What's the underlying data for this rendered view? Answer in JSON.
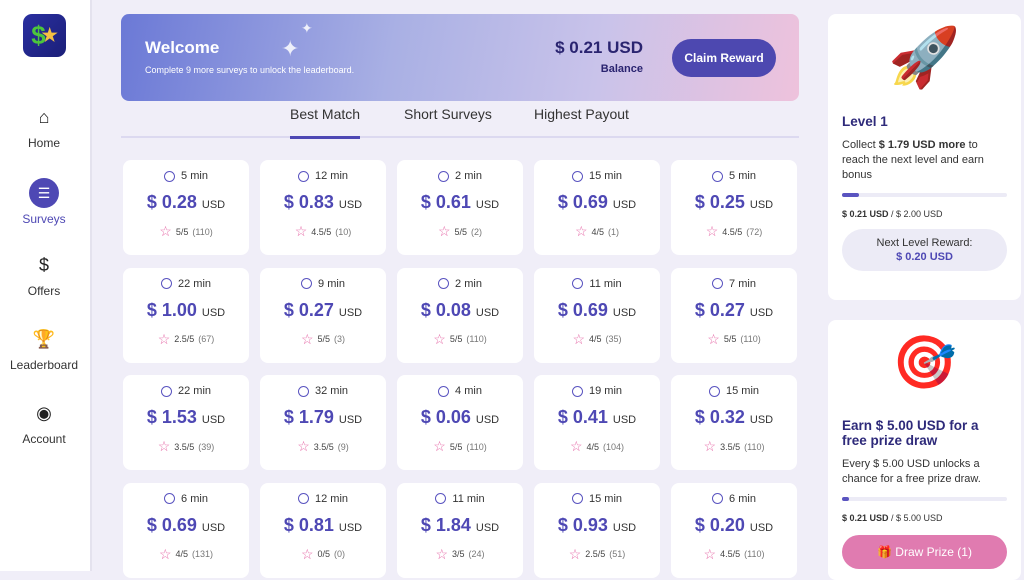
{
  "app": {
    "logo_text": "$★"
  },
  "sidebar": {
    "items": [
      {
        "label": "Home",
        "icon": "⌂",
        "name": "home"
      },
      {
        "label": "Surveys",
        "icon": "☰",
        "name": "surveys",
        "active": true
      },
      {
        "label": "Offers",
        "icon": "$",
        "name": "offers"
      },
      {
        "label": "Leaderboard",
        "icon": "🏆",
        "name": "leaderboard"
      },
      {
        "label": "Account",
        "icon": "◉",
        "name": "account"
      }
    ]
  },
  "banner": {
    "title": "Welcome",
    "subtitle": "Complete 9 more surveys to unlock the leaderboard.",
    "balance": "$ 0.21 USD",
    "balance_label": "Balance",
    "claim_label": "Claim Reward"
  },
  "tabs": [
    {
      "label": "Best Match",
      "active": true
    },
    {
      "label": "Short Surveys"
    },
    {
      "label": "Highest Payout"
    }
  ],
  "surveys": [
    {
      "time": "5 min",
      "price": "$ 0.28",
      "cur": "USD",
      "rating": "5/5",
      "count": "(110)"
    },
    {
      "time": "12 min",
      "price": "$ 0.83",
      "cur": "USD",
      "rating": "4.5/5",
      "count": "(10)"
    },
    {
      "time": "2 min",
      "price": "$ 0.61",
      "cur": "USD",
      "rating": "5/5",
      "count": "(2)"
    },
    {
      "time": "15 min",
      "price": "$ 0.69",
      "cur": "USD",
      "rating": "4/5",
      "count": "(1)"
    },
    {
      "time": "5 min",
      "price": "$ 0.25",
      "cur": "USD",
      "rating": "4.5/5",
      "count": "(72)"
    },
    {
      "time": "22 min",
      "price": "$ 1.00",
      "cur": "USD",
      "rating": "2.5/5",
      "count": "(67)"
    },
    {
      "time": "9 min",
      "price": "$ 0.27",
      "cur": "USD",
      "rating": "5/5",
      "count": "(3)"
    },
    {
      "time": "2 min",
      "price": "$ 0.08",
      "cur": "USD",
      "rating": "5/5",
      "count": "(110)"
    },
    {
      "time": "11 min",
      "price": "$ 0.69",
      "cur": "USD",
      "rating": "4/5",
      "count": "(35)"
    },
    {
      "time": "7 min",
      "price": "$ 0.27",
      "cur": "USD",
      "rating": "5/5",
      "count": "(110)"
    },
    {
      "time": "22 min",
      "price": "$ 1.53",
      "cur": "USD",
      "rating": "3.5/5",
      "count": "(39)"
    },
    {
      "time": "32 min",
      "price": "$ 1.79",
      "cur": "USD",
      "rating": "3.5/5",
      "count": "(9)"
    },
    {
      "time": "4 min",
      "price": "$ 0.06",
      "cur": "USD",
      "rating": "5/5",
      "count": "(110)"
    },
    {
      "time": "19 min",
      "price": "$ 0.41",
      "cur": "USD",
      "rating": "4/5",
      "count": "(104)"
    },
    {
      "time": "15 min",
      "price": "$ 0.32",
      "cur": "USD",
      "rating": "3.5/5",
      "count": "(110)"
    },
    {
      "time": "6 min",
      "price": "$ 0.69",
      "cur": "USD",
      "rating": "4/5",
      "count": "(131)"
    },
    {
      "time": "12 min",
      "price": "$ 0.81",
      "cur": "USD",
      "rating": "0/5",
      "count": "(0)"
    },
    {
      "time": "11 min",
      "price": "$ 1.84",
      "cur": "USD",
      "rating": "3/5",
      "count": "(24)"
    },
    {
      "time": "15 min",
      "price": "$ 0.93",
      "cur": "USD",
      "rating": "2.5/5",
      "count": "(51)"
    },
    {
      "time": "6 min",
      "price": "$ 0.20",
      "cur": "USD",
      "rating": "4.5/5",
      "count": "(110)"
    }
  ],
  "level": {
    "icon": "rocket-icon",
    "title": "Level 1",
    "text_pre": "Collect ",
    "text_bold": "$ 1.79 USD more",
    "text_post": " to reach the next level and earn bonus",
    "progress": 0.105,
    "current": "$ 0.21 USD",
    "target": " / $ 2.00 USD",
    "reward_label": "Next Level Reward:",
    "reward_value": "$ 0.20 USD"
  },
  "prize": {
    "icon": "target-icon",
    "title": "Earn $ 5.00 USD for a free prize draw",
    "text": "Every $ 5.00 USD unlocks a chance for a free prize draw.",
    "progress": 0.042,
    "current": "$ 0.21 USD",
    "target": " / $ 5.00 USD",
    "button": "🎁 Draw Prize (1)"
  }
}
